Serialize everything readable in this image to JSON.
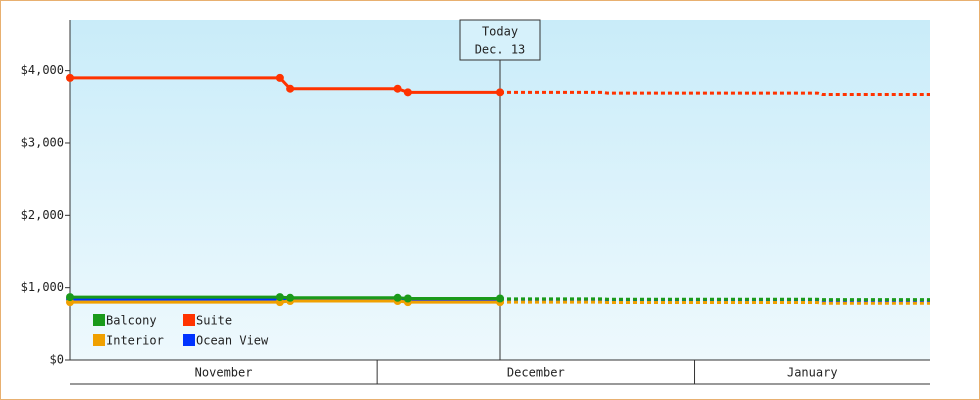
{
  "chart_data": {
    "type": "line",
    "x": [
      0,
      20.5,
      21.5,
      32,
      33,
      42
    ],
    "forecast_x": [
      42,
      52,
      52.5,
      73,
      73.5,
      84
    ],
    "xlim": [
      0,
      84
    ],
    "ylim": [
      0,
      4700
    ],
    "yticks": [
      {
        "value": 0,
        "label": "$0"
      },
      {
        "value": 1000,
        "label": "$1,000"
      },
      {
        "value": 2000,
        "label": "$2,000"
      },
      {
        "value": 3000,
        "label": "$3,000"
      },
      {
        "value": 4000,
        "label": "$4,000"
      }
    ],
    "month_bands": [
      {
        "label": "November",
        "from": 0,
        "to": 30
      },
      {
        "label": "December",
        "from": 30,
        "to": 61
      },
      {
        "label": "January",
        "from": 61,
        "to": 84
      }
    ],
    "today": {
      "x": 42,
      "label": "Today",
      "date": "Dec. 13"
    },
    "series": [
      {
        "name": "Balcony",
        "color": "#1a9a1a",
        "values": [
          870,
          870,
          860,
          860,
          850,
          850
        ],
        "forecast": [
          845,
          845,
          840,
          840,
          835,
          835
        ]
      },
      {
        "name": "Suite",
        "color": "#ff3300",
        "values": [
          3900,
          3900,
          3750,
          3750,
          3700,
          3700
        ],
        "forecast": [
          3700,
          3700,
          3690,
          3690,
          3670,
          3670
        ]
      },
      {
        "name": "Interior",
        "color": "#f0a000",
        "values": [
          800,
          800,
          815,
          815,
          800,
          800
        ],
        "forecast": [
          800,
          800,
          795,
          795,
          785,
          785
        ]
      },
      {
        "name": "Ocean View",
        "color": "#0033ff",
        "values": [
          840,
          840,
          845,
          845,
          830,
          830
        ],
        "forecast": [
          830,
          830,
          825,
          825,
          815,
          815
        ]
      }
    ]
  }
}
